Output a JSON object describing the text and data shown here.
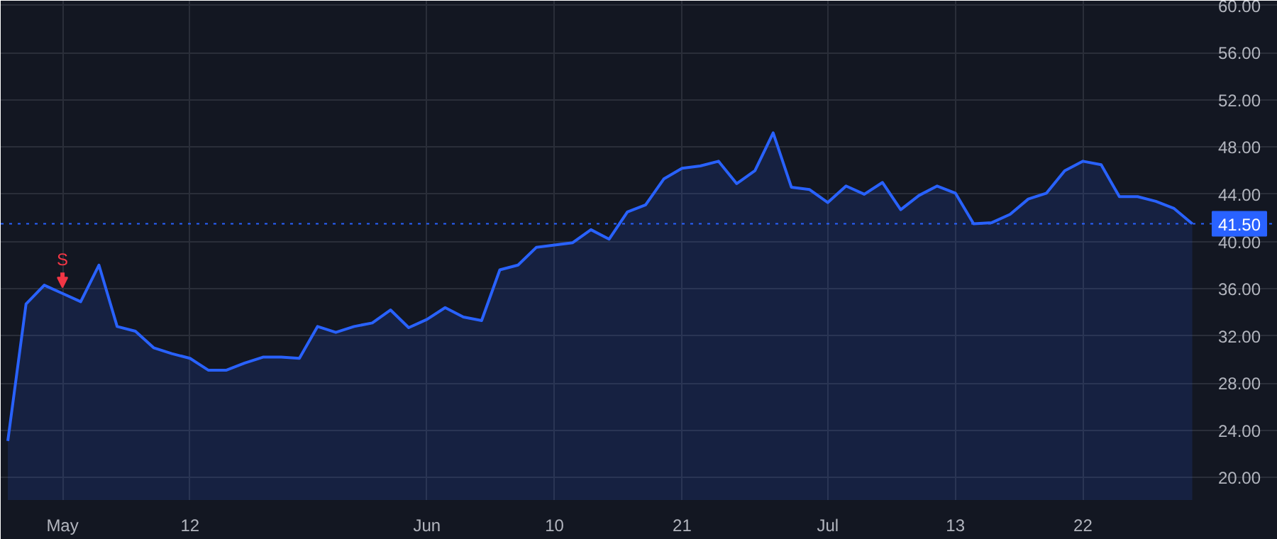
{
  "chart_data": {
    "type": "area",
    "categories": [
      null,
      null,
      null,
      "May",
      null,
      null,
      null,
      null,
      null,
      null,
      "12",
      null,
      null,
      null,
      null,
      null,
      null,
      null,
      null,
      null,
      null,
      null,
      null,
      "Jun",
      null,
      null,
      null,
      null,
      null,
      null,
      "10",
      null,
      null,
      null,
      null,
      null,
      null,
      "21",
      null,
      null,
      null,
      null,
      null,
      null,
      null,
      "Jul",
      null,
      null,
      null,
      null,
      null,
      null,
      "13",
      null,
      null,
      null,
      null,
      null,
      null,
      "22",
      null,
      null,
      null,
      null,
      null,
      null
    ],
    "series": [
      {
        "color": "#2962ff",
        "values": [
          23.1,
          34.7,
          36.3,
          35.6,
          34.9,
          38.0,
          32.8,
          32.4,
          31.0,
          30.5,
          30.1,
          29.1,
          29.1,
          29.7,
          30.2,
          30.2,
          30.1,
          32.8,
          32.3,
          32.8,
          33.1,
          34.2,
          32.7,
          33.4,
          34.4,
          33.6,
          33.3,
          37.6,
          38.0,
          39.5,
          39.7,
          39.9,
          41.0,
          40.2,
          42.5,
          43.1,
          45.3,
          46.2,
          46.4,
          46.8,
          44.9,
          46.0,
          49.2,
          44.6,
          44.4,
          43.3,
          44.7,
          44.0,
          45.0,
          42.7,
          43.9,
          44.7,
          44.1,
          41.5,
          41.6,
          42.3,
          43.6,
          44.1,
          46.0,
          46.8,
          46.5,
          43.8,
          43.8,
          43.4,
          42.8,
          41.5
        ]
      }
    ],
    "ylim": [
      18.1,
      60.4
    ],
    "yticks": [
      {
        "value": 20,
        "label": "20.00"
      },
      {
        "value": 24,
        "label": "24.00"
      },
      {
        "value": 28,
        "label": "28.00"
      },
      {
        "value": 32,
        "label": "32.00"
      },
      {
        "value": 36,
        "label": "36.00"
      },
      {
        "value": 40,
        "label": "40.00"
      },
      {
        "value": 44,
        "label": "44.00"
      },
      {
        "value": 48,
        "label": "48.00"
      },
      {
        "value": 52,
        "label": "52.00"
      },
      {
        "value": 56,
        "label": "56.00"
      },
      {
        "value": 60,
        "label": "60.00"
      }
    ],
    "ref_lines": [
      {
        "axis": "y",
        "value": 41.5,
        "label": "41.50",
        "color": "#2962ff",
        "line_style": "dotted"
      }
    ],
    "annotations": [
      {
        "text": "S",
        "x": "May",
        "y": 35.6
      }
    ],
    "grid": true
  }
}
